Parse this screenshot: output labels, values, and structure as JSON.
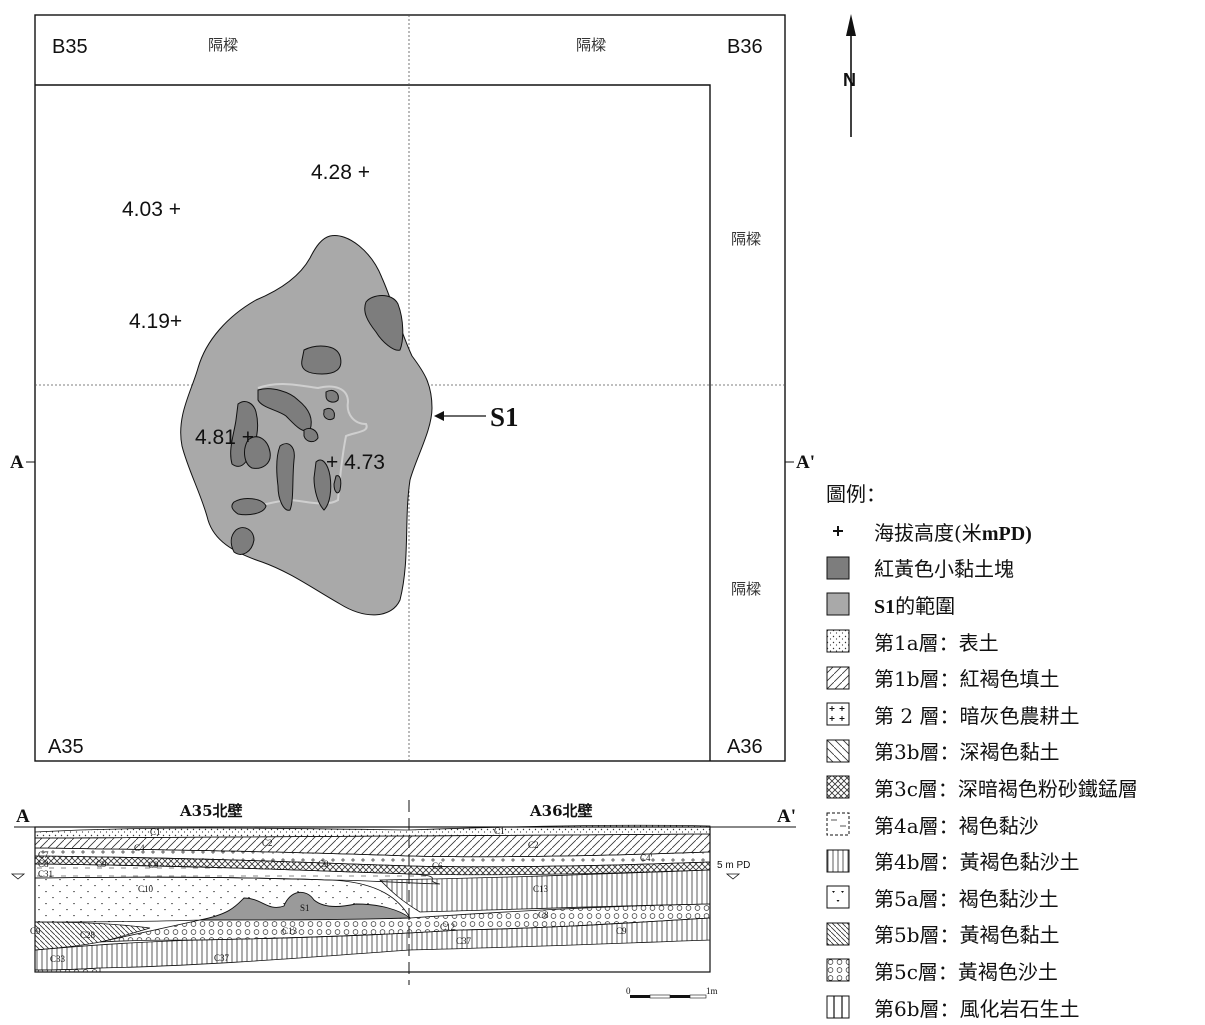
{
  "plan": {
    "corner_labels": {
      "nw": "B35",
      "ne": "B36",
      "sw": "A35",
      "se": "A36"
    },
    "baulk_label": "隔樑",
    "section_left": "A",
    "section_right": "A'",
    "feature_label": "S1",
    "north_label": "N",
    "elevations": [
      "4.28 +",
      "4.03 +",
      "4.19+",
      "4.81 +",
      "+ 4.73"
    ]
  },
  "section": {
    "left": "A",
    "right": "A'",
    "title_a35": "A35北壁",
    "title_a36": "A36北壁",
    "datum": "5 m PD",
    "feature": "S1",
    "layers": [
      "C1",
      "C1",
      "C2",
      "C2",
      "C4",
      "C4'",
      "C7",
      "C8",
      "C9",
      "C9",
      "C9",
      "C9",
      "C31",
      "C10",
      "C6",
      "C13",
      "C8",
      "C28",
      "C13",
      "C12",
      "C9",
      "C37",
      "C33",
      "C37"
    ],
    "scale_start": "0",
    "scale_end": "1m"
  },
  "legend": {
    "title": "圖例：",
    "items": [
      {
        "symbol": "plus",
        "label": "海拔高度(米",
        "bold": "mPD)"
      },
      {
        "symbol": "dark-grey",
        "label": "紅黃色小黏土塊"
      },
      {
        "symbol": "mid-grey",
        "bold": "S1",
        "label": "的範圍"
      },
      {
        "symbol": "dots",
        "label": "第1a層：表土"
      },
      {
        "symbol": "hatch-right",
        "label": "第1b層：紅褐色填土"
      },
      {
        "symbol": "plus-pattern",
        "label": "第 2 層：暗灰色農耕土"
      },
      {
        "symbol": "hatch-left",
        "label": "第3b層：深褐色黏土"
      },
      {
        "symbol": "cross-hatch",
        "label": "第3c層：深暗褐色粉砂鐵錳層"
      },
      {
        "symbol": "dashes",
        "label": "第4a層：褐色黏沙"
      },
      {
        "symbol": "vertical-lines",
        "label": "第4b層：黃褐色黏沙土"
      },
      {
        "symbol": "triangle-dots",
        "label": "第5a層：褐色黏沙土"
      },
      {
        "symbol": "dense-hatch-left",
        "label": "第5b層：黃褐色黏土"
      },
      {
        "symbol": "circles",
        "label": "第5c層：黃褐色沙土"
      },
      {
        "symbol": "wide-vertical",
        "label": "第6b層：風化岩石生土"
      }
    ]
  },
  "colors": {
    "dark_blob": "#7d7d7d",
    "s1_area": "#a9a9a9",
    "line": "#111111"
  }
}
